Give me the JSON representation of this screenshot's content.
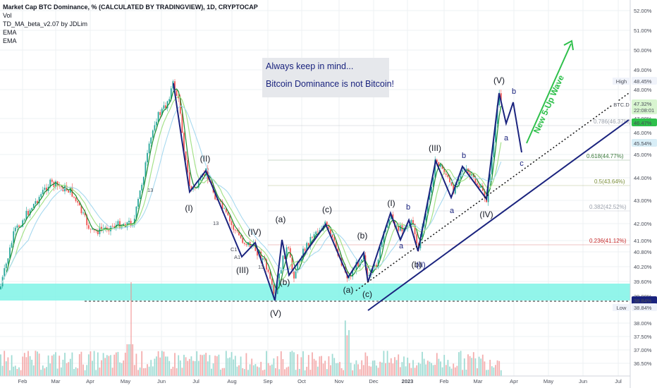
{
  "header": {
    "title": "Market Cap BTC Dominance, % (CALCULATED BY TRADINGVIEW), 1D, CRYPTOCAP",
    "lines": [
      "Vol",
      "TD_MA_beta_v2.07 by JDLim",
      "EMA",
      "EMA"
    ]
  },
  "note": {
    "line1": "Always keep in mind...",
    "line2": "Bitcoin Dominance is not Bitcoin!"
  },
  "x_axis": [
    "Feb",
    "Mar",
    "Apr",
    "May",
    "Jun",
    "Jul",
    "Aug",
    "Sep",
    "Oct",
    "Nov",
    "Dec",
    "2023",
    "Feb",
    "Mar",
    "Apr",
    "May",
    "Jun",
    "Jul"
  ],
  "y_axis": [
    "52.00%",
    "51.00%",
    "50.00%",
    "49.00%",
    "48.00%",
    "47.00%",
    "46.00%",
    "45.00%",
    "44.00%",
    "43.00%",
    "42.00%",
    "41.00%",
    "40.80%",
    "40.20%",
    "39.60%",
    "39.00%",
    "38.00%",
    "37.50%",
    "37.00%",
    "36.50%"
  ],
  "price_badges": {
    "high_label": "High",
    "high_value": "48.45%",
    "symbol": "BTC.D",
    "last_value": "47.32%",
    "countdown": "22:08:01",
    "ema1_value": "46.47%",
    "ema2_value": "45.54%",
    "low_line_value": "38.84%",
    "low_label": "Low",
    "low_value": "38.84%"
  },
  "fib_levels": [
    {
      "label": "0.786(46.37%)",
      "color": "#9aa0ab"
    },
    {
      "label": "0.618(44.77%)",
      "color": "#3b7a3b"
    },
    {
      "label": "0.5(43.64%)",
      "color": "#7c8f3a"
    },
    {
      "label": "0.382(42.52%)",
      "color": "#9aa0ab"
    },
    {
      "label": "0.236(41.12%)",
      "color": "#c62828"
    }
  ],
  "wave_labels": [
    "(I)",
    "(II)",
    "(III)",
    "(IV)",
    "(V)",
    "(a)",
    "(b)",
    "(c)",
    "(a)",
    "(b)",
    "(c)",
    "(b)",
    "(I)",
    "(II)",
    "(III)",
    "(IV)",
    "(V)",
    "a",
    "b",
    "a",
    "b",
    "a",
    "b",
    "c"
  ],
  "forecast_label": "New 5-Up Wave",
  "markers": [
    "13",
    "13",
    "13",
    "C1",
    "A1"
  ],
  "chart_data": {
    "type": "candlestick",
    "symbol": "BTC.D",
    "timeframe": "1D",
    "x": [
      "Feb",
      "Mar",
      "Apr",
      "May",
      "Jun",
      "Jul",
      "Aug",
      "Sep",
      "Oct",
      "Nov",
      "Dec",
      "2023",
      "Feb",
      "Mar",
      "Apr",
      "May",
      "Jun",
      "Jul"
    ],
    "wave_path": [
      {
        "date": "Jun",
        "value": 48.4
      },
      {
        "date": "Jul",
        "value": 43.4
      },
      {
        "date": "Jul",
        "value": 44.3
      },
      {
        "date": "Aug",
        "value": 41.2
      },
      {
        "date": "Aug",
        "value": 41.7
      },
      {
        "date": "Sep",
        "value": 38.9
      },
      {
        "date": "Sep",
        "value": 41.4
      },
      {
        "date": "Sep",
        "value": 39.7
      },
      {
        "date": "Oct",
        "value": 42.0
      },
      {
        "date": "Nov",
        "value": 39.6
      },
      {
        "date": "Nov",
        "value": 40.5
      },
      {
        "date": "Dec",
        "value": 39.4
      },
      {
        "date": "Dec",
        "value": 42.2
      },
      {
        "date": "2023",
        "value": 41.5
      },
      {
        "date": "2023",
        "value": 44.8
      },
      {
        "date": "Feb",
        "value": 43.4
      },
      {
        "date": "Mar",
        "value": 47.6
      }
    ],
    "ylabel": "%",
    "y_range": [
      36.3,
      52.2
    ],
    "grid": true,
    "legend": "none"
  }
}
